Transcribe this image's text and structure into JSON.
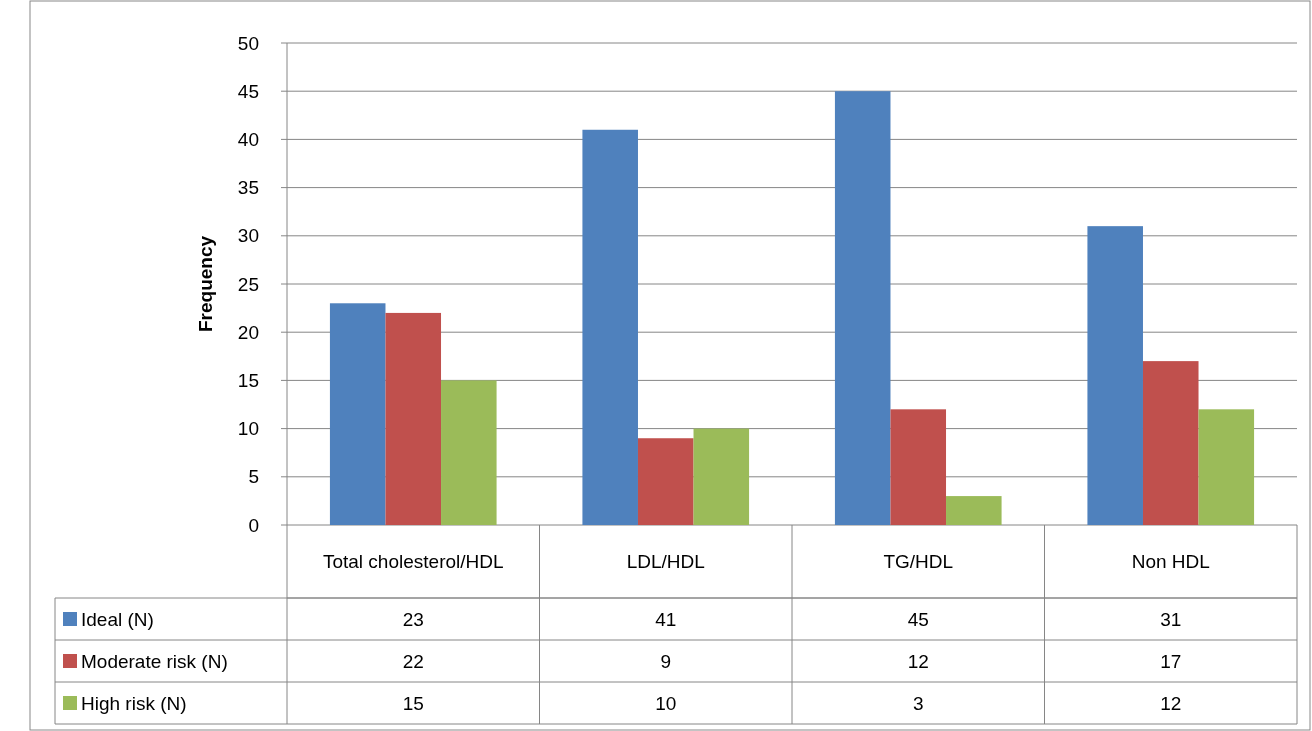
{
  "chart_data": {
    "type": "bar",
    "ylabel": "Frequency",
    "categories": [
      "Total cholesterol/HDL",
      "LDL/HDL",
      "TG/HDL",
      "Non HDL"
    ],
    "series": [
      {
        "name": "Ideal (N)",
        "color": "#4f81bd",
        "values": [
          23,
          41,
          45,
          31
        ]
      },
      {
        "name": "Moderate risk (N)",
        "color": "#c0504d",
        "values": [
          22,
          9,
          12,
          17
        ]
      },
      {
        "name": "High risk (N)",
        "color": "#9bbb59",
        "values": [
          15,
          10,
          3,
          12
        ]
      }
    ],
    "ylim": [
      0,
      50
    ],
    "yticks": [
      0,
      5,
      10,
      15,
      20,
      25,
      30,
      35,
      40,
      45,
      50
    ],
    "grid": "y",
    "legend": "bottom",
    "data_labels": true
  }
}
